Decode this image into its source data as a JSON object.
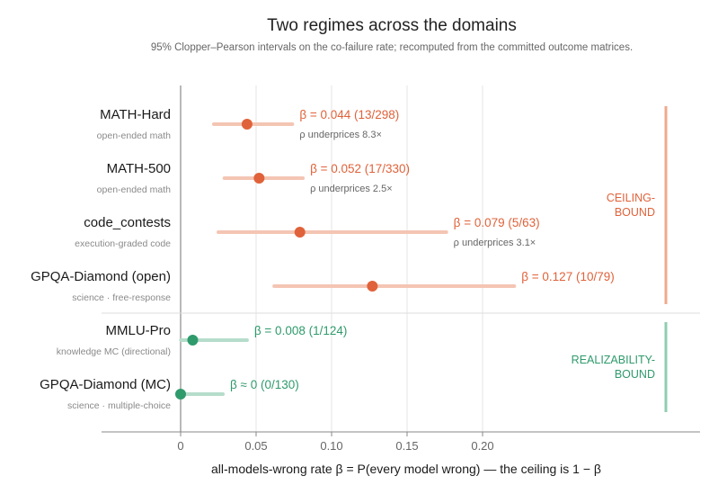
{
  "chart_data": {
    "type": "scatter",
    "title": "Two regimes across the domains",
    "subtitle": "95% Clopper–Pearson intervals on the co-failure rate; recomputed from the committed outcome matrices.",
    "xlabel": "all-models-wrong rate  β = P(every model wrong)  —  the ceiling is 1 − β",
    "xlim": [
      -0.053,
      0.345
    ],
    "x_ticks": [
      {
        "value": 0,
        "label": "0"
      },
      {
        "value": 0.05,
        "label": "0.05"
      },
      {
        "value": 0.1,
        "label": "0.10"
      },
      {
        "value": 0.15,
        "label": "0.15"
      },
      {
        "value": 0.2,
        "label": "0.20"
      }
    ],
    "grid": true,
    "rows": [
      {
        "name": "MATH-Hard",
        "sub": "open-ended math",
        "beta": 0.044,
        "lo": 0.022,
        "hi": 0.074,
        "label": "β = 0.044  (13/298)",
        "rho": "ρ underprices 8.3×",
        "regime": "ceiling"
      },
      {
        "name": "MATH-500",
        "sub": "open-ended math",
        "beta": 0.052,
        "lo": 0.029,
        "hi": 0.081,
        "label": "β = 0.052  (17/330)",
        "rho": "ρ underprices 2.5×",
        "regime": "ceiling"
      },
      {
        "name": "code_contests",
        "sub": "execution-graded code",
        "beta": 0.079,
        "lo": 0.025,
        "hi": 0.176,
        "label": "β = 0.079  (5/63)",
        "rho": "ρ underprices 3.1×",
        "regime": "ceiling"
      },
      {
        "name": "GPQA-Diamond  (open)",
        "sub": "science · free-response",
        "beta": 0.127,
        "lo": 0.062,
        "hi": 0.221,
        "label": "β = 0.127  (10/79)",
        "rho": "",
        "regime": "ceiling"
      },
      {
        "name": "MMLU-Pro",
        "sub": "knowledge MC (directional)",
        "beta": 0.008,
        "lo": 0.0002,
        "hi": 0.044,
        "label": "β = 0.008  (1/124)",
        "rho": "",
        "regime": "realizability"
      },
      {
        "name": "GPQA-Diamond  (MC)",
        "sub": "science · multiple-choice",
        "beta": 0.0,
        "lo": 0.0,
        "hi": 0.028,
        "label": "β ≈ 0  (0/130)",
        "rho": "",
        "regime": "realizability"
      }
    ],
    "regimes": [
      {
        "key": "ceiling",
        "label_lines": [
          "CEILING-",
          "BOUND"
        ]
      },
      {
        "key": "realizability",
        "label_lines": [
          "REALIZABILITY-",
          "BOUND"
        ]
      }
    ]
  },
  "colors": {
    "ceiling": "#e0623a",
    "ceiling_light": "#f4c5b3",
    "ceiling_bar": "#f0a98c",
    "realizability": "#2f9a6c",
    "realizability_light": "#b6dccb",
    "realizability_bar": "#8fcdb1",
    "grid": "#e6e6e6",
    "axis": "#888888"
  }
}
